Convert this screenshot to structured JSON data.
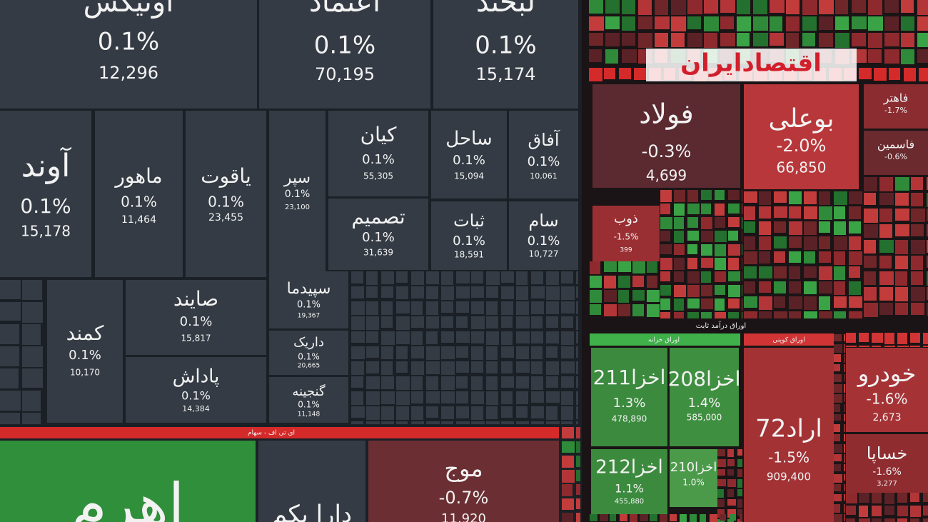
{
  "logo": "اقتصادایران",
  "headers": [
    "ای تی اف - سهام",
    "اوراق درآمد ثابت",
    "اوراق خزانه",
    "اوراق کوپنی"
  ],
  "tiles": [
    {
      "name": "اونیکس",
      "change": "0.1%",
      "volume": "12,296"
    },
    {
      "name": "اعتماد",
      "change": "0.1%",
      "volume": "70,195"
    },
    {
      "name": "لبخند",
      "change": "0.1%",
      "volume": "15,174"
    },
    {
      "name": "آوند",
      "change": "0.1%",
      "volume": "15,178"
    },
    {
      "name": "ماهور",
      "change": "0.1%",
      "volume": "11,464"
    },
    {
      "name": "یاقوت",
      "change": "0.1%",
      "volume": "23,455"
    },
    {
      "name": "سپر",
      "change": "0.1%",
      "volume": "23,100"
    },
    {
      "name": "کیان",
      "change": "0.1%",
      "volume": "55,305"
    },
    {
      "name": "ساحل",
      "change": "0.1%",
      "volume": "15,094"
    },
    {
      "name": "آفاق",
      "change": "0.1%",
      "volume": "10,061"
    },
    {
      "name": "تصمیم",
      "change": "0.1%",
      "volume": "31,639"
    },
    {
      "name": "ثبات",
      "change": "0.1%",
      "volume": "18,591"
    },
    {
      "name": "سام",
      "change": "0.1%",
      "volume": "10,727"
    },
    {
      "name": "کمند",
      "change": "0.1%",
      "volume": "10,170"
    },
    {
      "name": "صایند",
      "change": "0.1%",
      "volume": "15,817"
    },
    {
      "name": "پاداش",
      "change": "0.1%",
      "volume": "14,384"
    },
    {
      "name": "سپیدما",
      "change": "0.1%",
      "volume": "19,367"
    },
    {
      "name": "داریک",
      "change": "0.1%",
      "volume": "20,665"
    },
    {
      "name": "گنجینه",
      "change": "0.1%",
      "volume": "11,148"
    },
    {
      "name": "موج",
      "change": "-0.7%",
      "volume": "11,920"
    },
    {
      "name": "دارا یکم"
    },
    {
      "name": "اهرم"
    },
    {
      "name": "فولاد",
      "change": "-0.3%",
      "volume": "4,699"
    },
    {
      "name": "بوعلی",
      "change": "-2.0%",
      "volume": "66,850"
    },
    {
      "name": "فاهتر",
      "change": "-1.7%"
    },
    {
      "name": "فاسمین",
      "change": "-0.6%"
    },
    {
      "name": "ذوب",
      "change": "-1.5%",
      "volume": "399"
    },
    {
      "name": "خودرو",
      "change": "-1.6%",
      "volume": "2,673"
    },
    {
      "name": "خساپا",
      "change": "-1.6%",
      "volume": "3,277"
    },
    {
      "name": "اخزا211",
      "change": "1.3%",
      "volume": "478,890"
    },
    {
      "name": "اخزا208",
      "change": "1.4%",
      "volume": "585,000"
    },
    {
      "name": "اخزا212",
      "change": "1.1%",
      "volume": "455,880"
    },
    {
      "name": "اخزا210",
      "change": "1.0%"
    },
    {
      "name": "اراد72",
      "change": "-1.5%",
      "volume": "909,400"
    }
  ]
}
